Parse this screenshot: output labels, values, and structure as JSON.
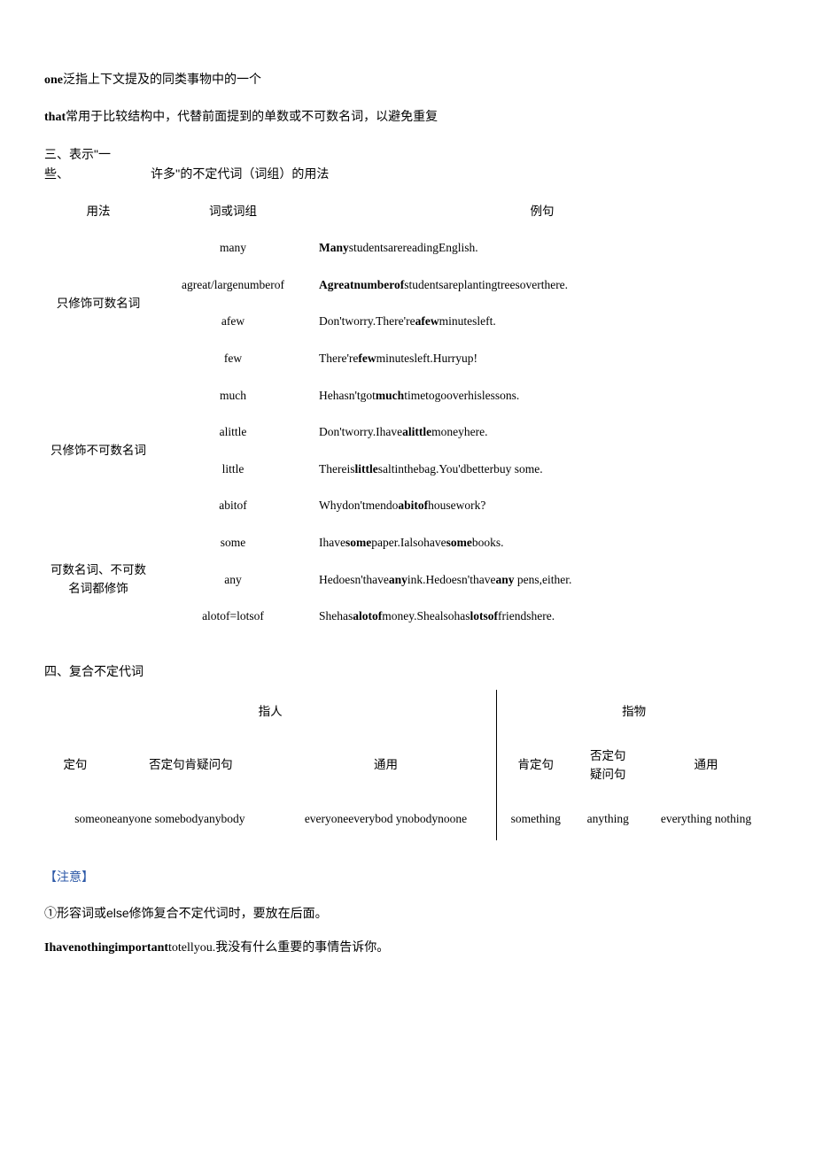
{
  "top": {
    "one_line_prefix": "one",
    "one_line_text": "泛指上下文提及的同类事物中的一个",
    "that_line_prefix": "that",
    "that_line_text": "常用于比较结构中，代替前面提到的单数或不可数名词，以避免重复"
  },
  "section3": {
    "intro_line1": "三、表示\"一",
    "intro_line2": "些、",
    "intro_right": "许多''的不定代词（词组）的用法",
    "header_usage": "用法",
    "header_word": "词或词组",
    "header_example": "例句",
    "group1_usage": "只修饰可数名词",
    "group1": [
      {
        "word": "many",
        "example_pre": "Many",
        "example_post": "studentsarereadingEnglish."
      },
      {
        "word": "agreat/largenumberof",
        "example_pre": "Agreatnumberof",
        "example_post": "studentsareplantingtreesoverthere."
      },
      {
        "word": "afew",
        "example_before": "Don'tworry.There're",
        "example_bold": "afew",
        "example_after": "minutesleft."
      },
      {
        "word": "few",
        "example_before": "There're",
        "example_bold": "few",
        "example_after": "minutesleft.Hurryup!"
      }
    ],
    "group2_usage": "只修饰不可数名词",
    "group2": [
      {
        "word": "much",
        "example_before": "Hehasn'tgot",
        "example_bold": "much",
        "example_after": "timetogooverhislessons."
      },
      {
        "word": "alittle",
        "example_before": "Don'tworry.Ihave",
        "example_bold": "alittle",
        "example_after": "moneyhere."
      },
      {
        "word": "little",
        "example_before": "Thereis",
        "example_bold": "little",
        "example_after": "saltinthebag.You'dbetterbuy some."
      },
      {
        "word": "abitof",
        "example_before": "Whydon'tmendo",
        "example_bold": "abitof",
        "example_after": "housework?"
      }
    ],
    "group3_usage": "可数名词、不可数名词都修饰",
    "group3": [
      {
        "word": "some",
        "example_before": "Ihave",
        "example_bold": "some",
        "example_mid": "paper.Ialsohave",
        "example_bold2": "some",
        "example_after": "books."
      },
      {
        "word": "any",
        "example_before": "Hedoesn'thave",
        "example_bold": "any",
        "example_mid": "ink.Hedoesn'thave",
        "example_bold2": "any",
        "example_after": " pens,either."
      },
      {
        "word": "alotof=lotsof",
        "example_before": "Shehas",
        "example_bold": "alotof",
        "example_mid": "money.Shealsohas",
        "example_bold2": "lotsof",
        "example_after": "friendshere."
      }
    ]
  },
  "section4": {
    "title": "四、复合不定代词",
    "head_person": "指人",
    "head_thing": "指物",
    "row_affirm": "定句",
    "row_neg_q": "否定句肯疑问句",
    "row_neg_q2_l1": "否定句",
    "row_neg_q2_l2": "疑问句",
    "row_common": "通用",
    "row_affirm2": "肯定句",
    "cell_p_aff": "someoneanyone somebodyanybody",
    "cell_p_common": "everyoneeverybod ynobodynoone",
    "cell_t_aff": "something",
    "cell_t_neg": "anything",
    "cell_t_common": "everything nothing"
  },
  "note": {
    "label": "【注意】",
    "line1": "①形容词或else修饰复合不定代词时，要放在后面。",
    "line2_pre": "I",
    "line2_bold": "havenothingimportant",
    "line2_post": "totellyou.我没有什么重要的事情告诉你。"
  }
}
